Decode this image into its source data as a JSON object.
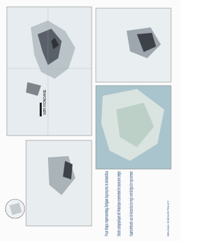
{
  "region_label": "SØR RONDANE",
  "titles": [
    "Four Maps representing Belgian toponyms in Antarctica",
    "Extraits cartographiques de l'Antarctique représentant les toponymes belges",
    "Kaartuittreksels van de Antarctische regio met Belgische toponiemen"
  ],
  "publisher": "BELGIAN SCIENCE POLICY"
}
